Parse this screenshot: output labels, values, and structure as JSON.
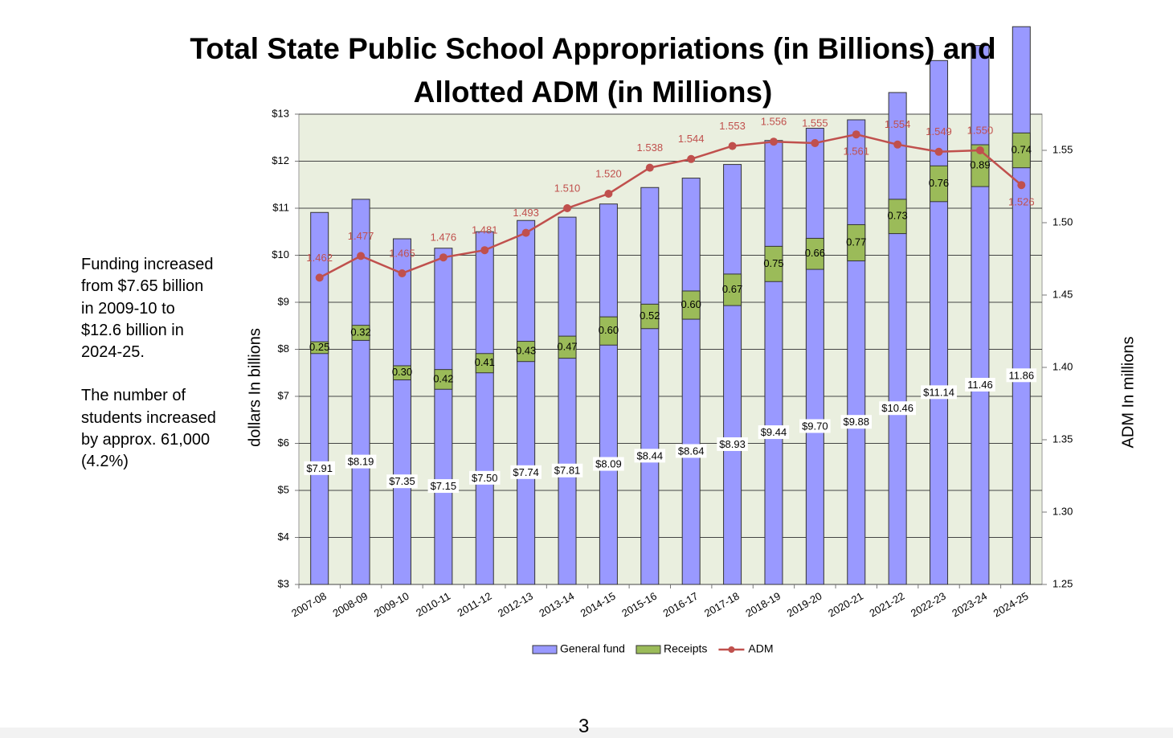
{
  "chart_data": {
    "type": "bar",
    "stacked": true,
    "title": "Total State Public School Appropriations (in Billions) and Allotted ADM (in Millions)",
    "ylabel": "dollars In  billions",
    "y2label": "ADM In  millions",
    "annotations": [
      "Funding increased from $7.65 billion in 2009-10 to $12.6 billion in 2024-25.",
      "The number of students increased by approx. 61,000 (4.2%)"
    ],
    "categories": [
      "2007-08",
      "2008-09",
      "2009-10",
      "2010-11",
      "2011-12",
      "2012-13",
      "2013-14",
      "2014-15",
      "2015-16",
      "2016-17",
      "2017-18",
      "2018-19",
      "2019-20",
      "2020-21",
      "2021-22",
      "2022-23",
      "2023-24",
      "2024-25"
    ],
    "series": [
      {
        "name": "General fund",
        "type": "bar",
        "color": "#9999ff",
        "values": [
          7.91,
          8.19,
          7.35,
          7.15,
          7.5,
          7.74,
          7.81,
          8.09,
          8.44,
          8.64,
          8.93,
          9.44,
          9.7,
          9.88,
          10.46,
          11.14,
          11.46,
          11.86
        ],
        "value_labels": [
          "$7.91",
          "$8.19",
          "$7.35",
          "$7.15",
          "$7.50",
          "$7.74",
          "$7.81",
          "$8.09",
          "$8.44",
          "$8.64",
          "$8.93",
          "$9.44",
          "$9.70",
          "$9.88",
          "$10.46",
          "$11.14",
          "11.46",
          "11.86"
        ]
      },
      {
        "name": "Receipts",
        "type": "bar",
        "color": "#9bbb59",
        "values": [
          0.25,
          0.32,
          0.3,
          0.42,
          0.41,
          0.43,
          0.47,
          0.6,
          0.52,
          0.6,
          0.67,
          0.75,
          0.66,
          0.77,
          0.73,
          0.76,
          0.89,
          0.74
        ],
        "value_labels": [
          "0.25",
          "0.32",
          "0.30",
          "0.42",
          "0.41",
          "0.43",
          "0.47",
          "0.60",
          "0.52",
          "0.60",
          "0.67",
          "0.75",
          "0.66",
          "0.77",
          "0.73",
          "0.76",
          "0.89",
          "0.74"
        ]
      },
      {
        "name": "ADM",
        "type": "line",
        "axis": "y2",
        "color": "#c0504d",
        "values": [
          1.462,
          1.477,
          1.465,
          1.476,
          1.481,
          1.493,
          1.51,
          1.52,
          1.538,
          1.544,
          1.553,
          1.556,
          1.555,
          1.561,
          1.554,
          1.549,
          1.55,
          1.526
        ],
        "value_labels": [
          "1.462",
          "1.477",
          "1.465",
          "1.476",
          "1.481",
          "1.493",
          "1.510",
          "1.520",
          "1.538",
          "1.544",
          "1.553",
          "1.556",
          "1.555",
          "1.561",
          "1.554",
          "1.549",
          "1.550",
          "1.526"
        ]
      }
    ],
    "ylim": [
      3,
      13
    ],
    "yticks": [
      {
        "value": 3,
        "label": "$3"
      },
      {
        "value": 4,
        "label": "$4"
      },
      {
        "value": 5,
        "label": "$5"
      },
      {
        "value": 6,
        "label": "$6"
      },
      {
        "value": 7,
        "label": "$7"
      },
      {
        "value": 8,
        "label": "$8"
      },
      {
        "value": 9,
        "label": "$9"
      },
      {
        "value": 10,
        "label": "$10"
      },
      {
        "value": 11,
        "label": "$11"
      },
      {
        "value": 12,
        "label": "$12"
      },
      {
        "value": 13,
        "label": "$13"
      }
    ],
    "y2lim": [
      1.25,
      1.575
    ],
    "y2ticks": [
      1.25,
      {
        "value": 1.3,
        "label": "1.30"
      },
      1.35,
      {
        "value": 1.4,
        "label": "1.40"
      },
      1.45,
      {
        "value": 1.5,
        "label": "1.50"
      },
      1.55
    ],
    "grid": true,
    "legend": "bottom"
  },
  "page_number": "3"
}
